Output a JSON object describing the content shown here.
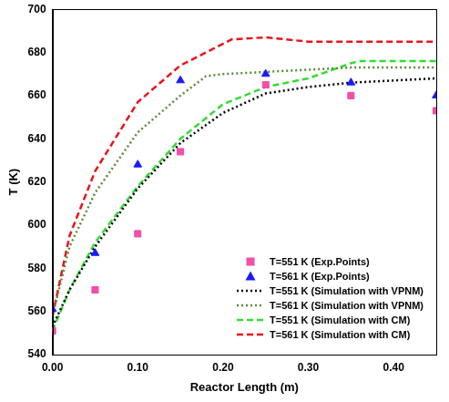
{
  "chart_data": {
    "type": "line",
    "x_label": "Reactor Length (m)",
    "y_label": "T (K)",
    "xlim": [
      0,
      0.45
    ],
    "xticks": [
      {
        "value": 0,
        "label": "0.00"
      },
      {
        "value": 0.1,
        "label": "0.10"
      },
      {
        "value": 0.2,
        "label": "0.20"
      },
      {
        "value": 0.3,
        "label": "0.30"
      },
      {
        "value": 0.4,
        "label": "0.40"
      }
    ],
    "ylim": [
      540,
      700
    ],
    "yticks": [
      540,
      560,
      580,
      600,
      620,
      640,
      660,
      680,
      700
    ],
    "grid": false,
    "legend": "lower right",
    "series": [
      {
        "name": "T=551 K (Exp.Points)",
        "type": "scatter",
        "marker": "square",
        "color": "#f24fa8",
        "x": [
          0,
          0.05,
          0.1,
          0.15,
          0.25,
          0.35,
          0.45
        ],
        "values": [
          551,
          570,
          596,
          634,
          665,
          660,
          653
        ]
      },
      {
        "name": "T=561 K (Exp.Points)",
        "type": "scatter",
        "marker": "triangle",
        "color": "#1a1aff",
        "x": [
          0,
          0.05,
          0.1,
          0.15,
          0.25,
          0.35,
          0.45
        ],
        "values": [
          561,
          587,
          628,
          667,
          670,
          666,
          660
        ]
      },
      {
        "name": "T=551 K (Simulation with VPNM)",
        "type": "line",
        "line_style": "dotted",
        "color": "#000000",
        "x": [
          0,
          0.02,
          0.05,
          0.1,
          0.15,
          0.2,
          0.25,
          0.3,
          0.35,
          0.4,
          0.45
        ],
        "values": [
          553,
          570,
          590,
          617,
          638,
          652,
          661,
          664,
          666,
          667,
          668
        ]
      },
      {
        "name": "T=561 K (Simulation with VPNM)",
        "type": "line",
        "line_style": "dotted",
        "color": "#5a8a35",
        "x": [
          0,
          0.02,
          0.05,
          0.1,
          0.15,
          0.18,
          0.2,
          0.25,
          0.3,
          0.35,
          0.45
        ],
        "values": [
          558,
          590,
          615,
          643,
          660,
          669,
          670,
          671,
          672,
          673,
          673
        ]
      },
      {
        "name": "T=551 K (Simulation with CM)",
        "type": "line",
        "line_style": "dashed",
        "color": "#33dd33",
        "x": [
          0,
          0.02,
          0.05,
          0.1,
          0.15,
          0.2,
          0.25,
          0.3,
          0.35,
          0.36,
          0.45
        ],
        "values": [
          551,
          570,
          592,
          618,
          640,
          656,
          664,
          668,
          675,
          676,
          676
        ]
      },
      {
        "name": "T=561 K (Simulation with CM)",
        "type": "line",
        "line_style": "dashed",
        "color": "#e8141a",
        "x": [
          0,
          0.02,
          0.05,
          0.1,
          0.15,
          0.21,
          0.25,
          0.3,
          0.45
        ],
        "values": [
          558,
          595,
          625,
          657,
          674,
          686,
          687,
          685,
          685
        ]
      }
    ]
  }
}
